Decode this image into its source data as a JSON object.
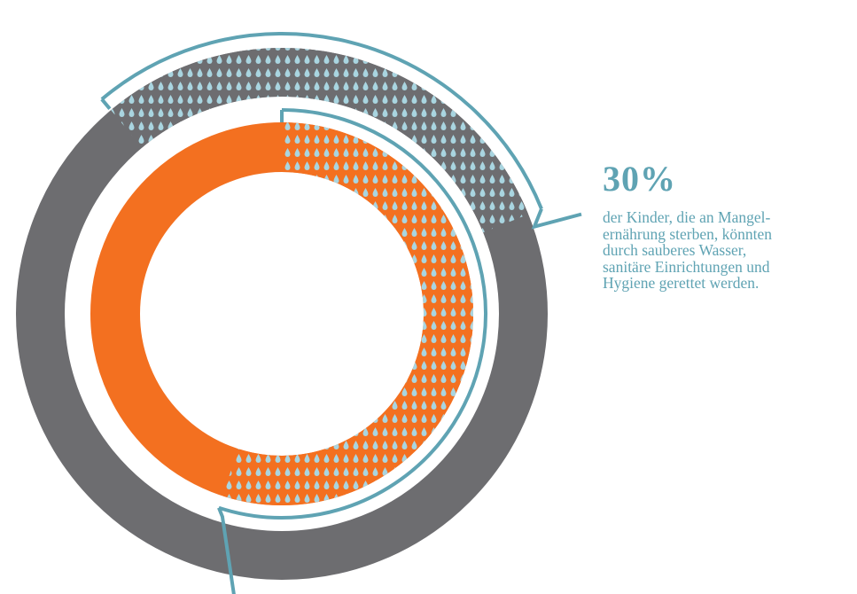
{
  "chart_data": {
    "type": "donut",
    "rings": [
      {
        "name": "outer",
        "color": "#6d6d70",
        "highlight_share": 0.3,
        "highlight_start_deg": -40
      },
      {
        "name": "inner",
        "color": "#f37020",
        "highlight_share": 0.55,
        "highlight_start_deg": 0
      }
    ],
    "highlight_pattern": "water-drops",
    "drop_color": "#a9d5e0",
    "leader_color": "#5fa3b3"
  },
  "callout": {
    "value": "30",
    "unit": "%",
    "lines": [
      "der Kinder, die an Mangel-",
      "ernährung sterben, könnten",
      "durch sauberes Wasser,",
      "sanitäre Einrichtungen und",
      "Hygiene gerettet werden."
    ],
    "color": "#5fa3b3"
  }
}
